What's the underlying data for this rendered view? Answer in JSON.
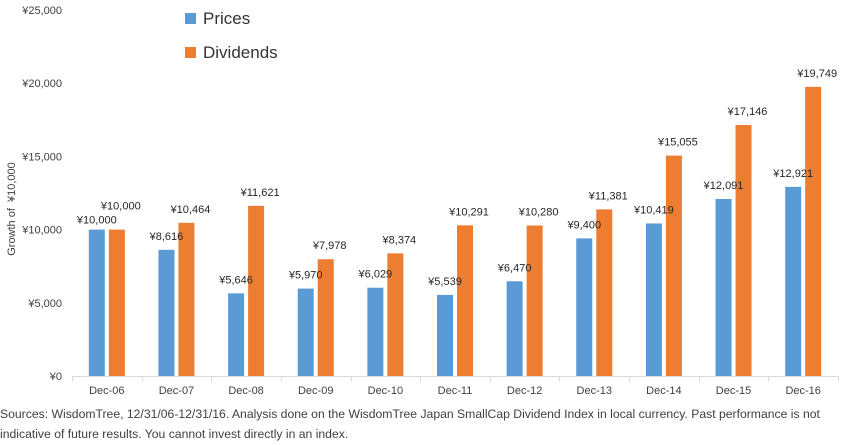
{
  "chart_data": {
    "type": "bar",
    "categories": [
      "Dec-06",
      "Dec-07",
      "Dec-08",
      "Dec-09",
      "Dec-10",
      "Dec-11",
      "Dec-12",
      "Dec-13",
      "Dec-14",
      "Dec-15",
      "Dec-16"
    ],
    "series": [
      {
        "name": "Prices",
        "color": "#5b9bd5",
        "values": [
          10000,
          8616,
          5646,
          5970,
          6029,
          5539,
          6470,
          9400,
          10419,
          12091,
          12921
        ],
        "labels": [
          "¥10,000",
          "¥8,616",
          "¥5,646",
          "¥5,970",
          "¥6,029",
          "¥5,539",
          "¥6,470",
          "¥9,400",
          "¥10,419",
          "¥12,091",
          "¥12,921"
        ]
      },
      {
        "name": "Dividends",
        "color": "#ed7d31",
        "values": [
          10000,
          10464,
          11621,
          7978,
          8374,
          10291,
          10280,
          11381,
          15055,
          17146,
          19749
        ],
        "labels": [
          "¥10,000",
          "¥10,464",
          "¥11,621",
          "¥7,978",
          "¥8,374",
          "¥10,291",
          "¥10,280",
          "¥11,381",
          "¥15,055",
          "¥17,146",
          "¥19,749"
        ]
      }
    ],
    "ylabel": "Growth of  ¥10,000",
    "ylim": [
      0,
      25000
    ],
    "yticks": [
      0,
      5000,
      10000,
      15000,
      20000,
      25000
    ],
    "ytick_labels": [
      "¥0",
      "¥5,000",
      "¥10,000",
      "¥15,000",
      "¥20,000",
      "¥25,000"
    ],
    "grid": false,
    "legend_position": "top-left"
  },
  "source_note": "Sources: WisdomTree, 12/31/06-12/31/16. Analysis done on the WisdomTree Japan SmallCap Dividend Index in local currency. Past performance is not indicative of future results. You cannot invest directly in an index."
}
